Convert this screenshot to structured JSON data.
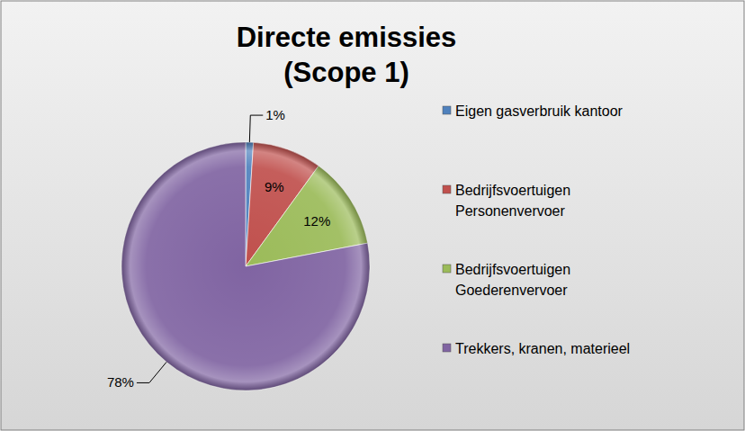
{
  "chart_data": {
    "type": "pie",
    "title": "Directe emissies\n(Scope 1)",
    "categories": [
      "Eigen gasverbruik kantoor",
      "Bedrijfsvoertuigen Personenvervoer",
      "Bedrijfsvoertuigen Goederenvervoer",
      "Trekkers, kranen, materieel"
    ],
    "values": [
      1,
      9,
      12,
      78
    ],
    "value_labels": [
      "1%",
      "9%",
      "12%",
      "78%"
    ],
    "colors": [
      "#4f81bd",
      "#c0504d",
      "#9bbb59",
      "#8064a2"
    ],
    "data_labels": true,
    "legend": "right"
  }
}
